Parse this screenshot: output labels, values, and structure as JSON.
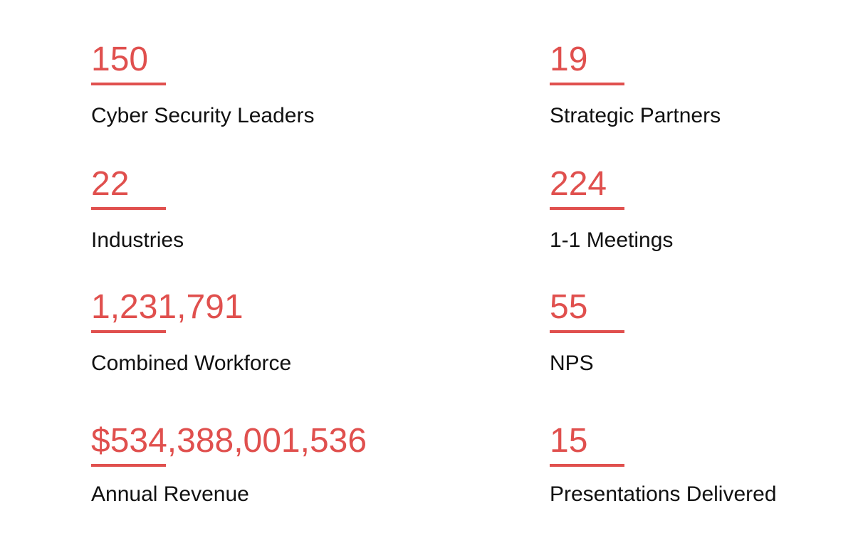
{
  "accent_color": "#e0504e",
  "stats": [
    {
      "value": "150",
      "label": "Cyber Security Leaders"
    },
    {
      "value": "19",
      "label": "Strategic Partners"
    },
    {
      "value": "22",
      "label": "Industries"
    },
    {
      "value": "224",
      "label": "1-1 Meetings"
    },
    {
      "value": "1,231,791",
      "label": "Combined Workforce"
    },
    {
      "value": "55",
      "label": "NPS"
    },
    {
      "value": "$534,388,001,536",
      "label": "Annual Revenue"
    },
    {
      "value": "15",
      "label": "Presentations Delivered"
    }
  ]
}
